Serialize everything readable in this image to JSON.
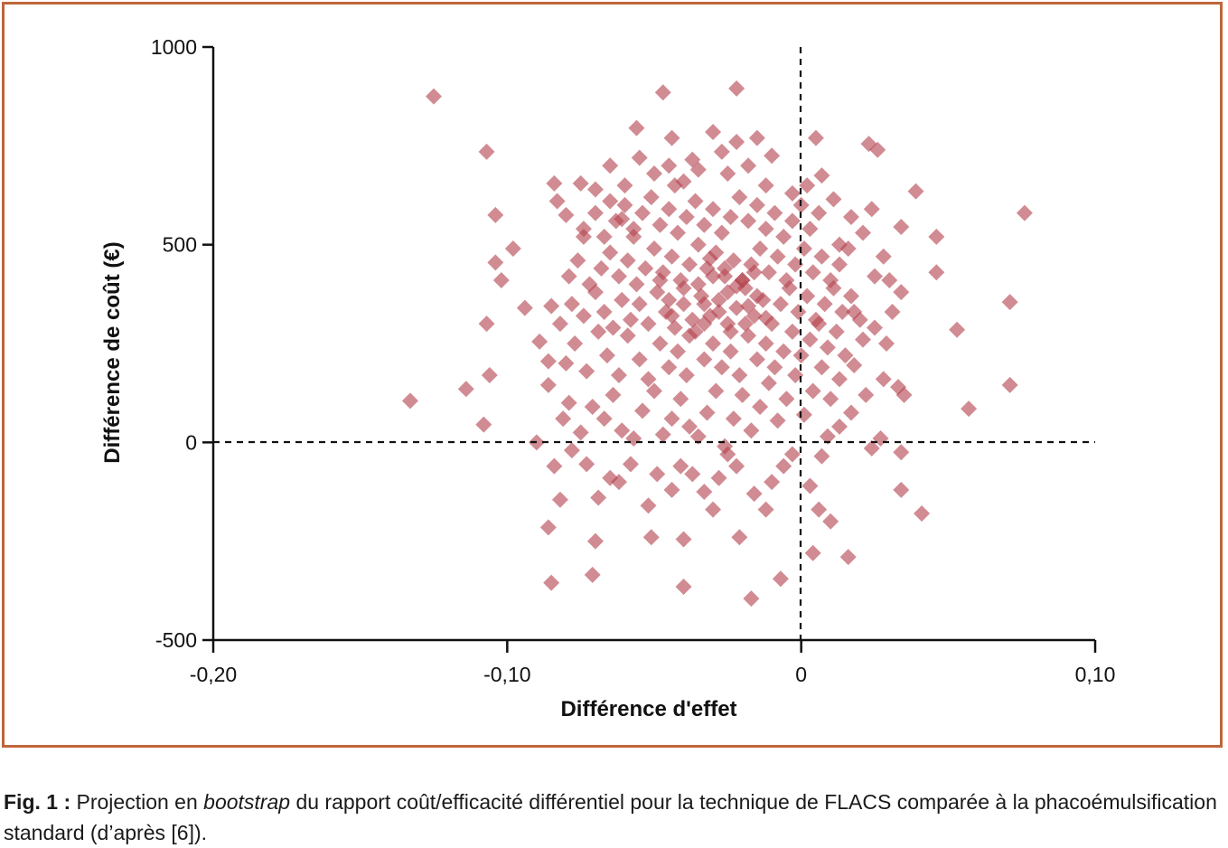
{
  "caption": {
    "fig_label": "Fig. 1 :",
    "text_before": " Projection en ",
    "emphasis": "bootstrap",
    "text_after": " du rapport coût/efficacité différentiel pour la technique de FLACS comparée à la phacoémulsification standard (d’après [6])."
  },
  "colors": {
    "frame": "#c0653a",
    "points": "#b5434f",
    "axes": "#111111"
  },
  "chart_data": {
    "type": "scatter",
    "marker": "diamond",
    "xlabel": "Différence d'effet",
    "ylabel": "Différence de coût (€)",
    "xlim": [
      -0.2,
      0.1
    ],
    "ylim": [
      -500,
      1000
    ],
    "x_ticks": [
      -0.2,
      -0.1,
      0,
      0.1
    ],
    "x_tick_labels": [
      "-0,20",
      "-0,10",
      "0",
      "0,10"
    ],
    "y_ticks": [
      1000,
      500,
      0,
      -500
    ],
    "y_tick_labels": [
      "1000",
      "500",
      "0",
      "-500"
    ],
    "reference_lines": {
      "x": 0,
      "y": 0,
      "style": "dashed"
    },
    "points": [
      [
        -0.125,
        875
      ],
      [
        -0.047,
        885
      ],
      [
        -0.022,
        895
      ],
      [
        -0.107,
        735
      ],
      [
        -0.104,
        575
      ],
      [
        -0.133,
        105
      ],
      [
        -0.114,
        135
      ],
      [
        -0.108,
        45
      ],
      [
        -0.106,
        170
      ],
      [
        -0.107,
        300
      ],
      [
        -0.104,
        455
      ],
      [
        -0.102,
        410
      ],
      [
        -0.098,
        490
      ],
      [
        -0.094,
        340
      ],
      [
        -0.089,
        255
      ],
      [
        -0.086,
        205
      ],
      [
        -0.085,
        345
      ],
      [
        -0.086,
        145
      ],
      [
        -0.09,
        0
      ],
      [
        -0.084,
        -60
      ],
      [
        -0.082,
        -145
      ],
      [
        -0.086,
        -215
      ],
      [
        -0.085,
        -355
      ],
      [
        -0.071,
        -335
      ],
      [
        -0.07,
        -250
      ],
      [
        -0.04,
        -365
      ],
      [
        -0.017,
        -395
      ],
      [
        -0.007,
        -345
      ],
      [
        0.004,
        -280
      ],
      [
        0.016,
        -290
      ],
      [
        -0.021,
        -240
      ],
      [
        -0.04,
        -245
      ],
      [
        -0.051,
        -240
      ],
      [
        0.034,
        -120
      ],
      [
        0.041,
        -180
      ],
      [
        0.057,
        85
      ],
      [
        0.071,
        145
      ],
      [
        0.071,
        355
      ],
      [
        0.053,
        285
      ],
      [
        0.076,
        580
      ],
      [
        0.046,
        520
      ],
      [
        0.046,
        430
      ],
      [
        0.039,
        635
      ],
      [
        0.034,
        545
      ],
      [
        0.026,
        740
      ],
      [
        0.023,
        755
      ],
      [
        0.005,
        770
      ],
      [
        -0.056,
        795
      ],
      [
        -0.044,
        770
      ],
      [
        -0.022,
        760
      ],
      [
        -0.084,
        655
      ],
      [
        -0.075,
        655
      ],
      [
        -0.083,
        610
      ],
      [
        -0.07,
        640
      ],
      [
        -0.08,
        575
      ],
      [
        -0.074,
        520
      ],
      [
        -0.065,
        610
      ],
      [
        -0.061,
        565
      ],
      [
        -0.057,
        520
      ],
      [
        -0.05,
        680
      ],
      [
        -0.043,
        650
      ],
      [
        -0.037,
        715
      ],
      [
        -0.03,
        785
      ],
      [
        -0.027,
        735
      ],
      [
        -0.015,
        770
      ],
      [
        -0.01,
        725
      ],
      [
        0.002,
        650
      ],
      [
        0.007,
        675
      ],
      [
        0.011,
        615
      ],
      [
        0.017,
        570
      ],
      [
        0.024,
        590
      ],
      [
        0.013,
        500
      ],
      [
        0.021,
        530
      ],
      [
        0.028,
        470
      ],
      [
        0.025,
        420
      ],
      [
        0.03,
        410
      ],
      [
        0.034,
        380
      ],
      [
        0.031,
        330
      ],
      [
        0.029,
        250
      ],
      [
        0.025,
        290
      ],
      [
        0.018,
        195
      ],
      [
        0.022,
        120
      ],
      [
        0.028,
        160
      ],
      [
        0.033,
        140
      ],
      [
        0.035,
        120
      ],
      [
        0.027,
        10
      ],
      [
        0.024,
        -15
      ],
      [
        0.034,
        -25
      ],
      [
        0.017,
        75
      ],
      [
        0.013,
        40
      ],
      [
        0.009,
        15
      ],
      [
        0.007,
        -35
      ],
      [
        0.003,
        -110
      ],
      [
        0.006,
        -170
      ],
      [
        0.01,
        -200
      ],
      [
        -0.003,
        -30
      ],
      [
        -0.006,
        -60
      ],
      [
        -0.01,
        -100
      ],
      [
        -0.012,
        -170
      ],
      [
        -0.016,
        -130
      ],
      [
        -0.022,
        -60
      ],
      [
        -0.025,
        -30
      ],
      [
        -0.028,
        -90
      ],
      [
        -0.03,
        -170
      ],
      [
        -0.033,
        -125
      ],
      [
        -0.037,
        -80
      ],
      [
        -0.041,
        -60
      ],
      [
        -0.044,
        -120
      ],
      [
        -0.049,
        -80
      ],
      [
        -0.052,
        -160
      ],
      [
        -0.058,
        -55
      ],
      [
        -0.062,
        -100
      ],
      [
        -0.065,
        -90
      ],
      [
        -0.069,
        -140
      ],
      [
        -0.073,
        -55
      ],
      [
        -0.078,
        -20
      ],
      [
        -0.081,
        60
      ],
      [
        -0.079,
        100
      ],
      [
        -0.075,
        25
      ],
      [
        -0.071,
        90
      ],
      [
        -0.067,
        60
      ],
      [
        -0.064,
        120
      ],
      [
        -0.061,
        30
      ],
      [
        -0.057,
        10
      ],
      [
        -0.054,
        80
      ],
      [
        -0.05,
        130
      ],
      [
        -0.047,
        20
      ],
      [
        -0.044,
        60
      ],
      [
        -0.041,
        110
      ],
      [
        -0.038,
        40
      ],
      [
        -0.035,
        15
      ],
      [
        -0.032,
        75
      ],
      [
        -0.029,
        130
      ],
      [
        -0.026,
        -10
      ],
      [
        -0.023,
        60
      ],
      [
        -0.02,
        120
      ],
      [
        -0.017,
        30
      ],
      [
        -0.014,
        90
      ],
      [
        -0.011,
        150
      ],
      [
        -0.008,
        55
      ],
      [
        -0.005,
        110
      ],
      [
        -0.002,
        170
      ],
      [
        0.001,
        70
      ],
      [
        0.004,
        130
      ],
      [
        0.007,
        190
      ],
      [
        0.01,
        110
      ],
      [
        0.013,
        160
      ],
      [
        -0.08,
        200
      ],
      [
        -0.077,
        250
      ],
      [
        -0.073,
        180
      ],
      [
        -0.069,
        280
      ],
      [
        -0.066,
        220
      ],
      [
        -0.062,
        170
      ],
      [
        -0.059,
        270
      ],
      [
        -0.055,
        210
      ],
      [
        -0.052,
        160
      ],
      [
        -0.048,
        250
      ],
      [
        -0.045,
        190
      ],
      [
        -0.042,
        230
      ],
      [
        -0.039,
        170
      ],
      [
        -0.036,
        280
      ],
      [
        -0.033,
        210
      ],
      [
        -0.03,
        250
      ],
      [
        -0.027,
        190
      ],
      [
        -0.024,
        230
      ],
      [
        -0.021,
        170
      ],
      [
        -0.018,
        270
      ],
      [
        -0.015,
        210
      ],
      [
        -0.012,
        250
      ],
      [
        -0.009,
        190
      ],
      [
        -0.006,
        230
      ],
      [
        -0.003,
        280
      ],
      [
        0.0,
        220
      ],
      [
        0.003,
        260
      ],
      [
        0.006,
        300
      ],
      [
        0.009,
        240
      ],
      [
        0.012,
        280
      ],
      [
        0.015,
        220
      ],
      [
        0.018,
        330
      ],
      [
        0.021,
        260
      ],
      [
        -0.082,
        300
      ],
      [
        -0.078,
        350
      ],
      [
        -0.074,
        320
      ],
      [
        -0.07,
        380
      ],
      [
        -0.067,
        330
      ],
      [
        -0.064,
        290
      ],
      [
        -0.061,
        360
      ],
      [
        -0.058,
        310
      ],
      [
        -0.055,
        350
      ],
      [
        -0.052,
        300
      ],
      [
        -0.049,
        380
      ],
      [
        -0.046,
        330
      ],
      [
        -0.043,
        290
      ],
      [
        -0.04,
        350
      ],
      [
        -0.037,
        310
      ],
      [
        -0.034,
        370
      ],
      [
        -0.031,
        320
      ],
      [
        -0.028,
        360
      ],
      [
        -0.025,
        300
      ],
      [
        -0.022,
        340
      ],
      [
        -0.019,
        390
      ],
      [
        -0.016,
        320
      ],
      [
        -0.013,
        360
      ],
      [
        -0.01,
        300
      ],
      [
        -0.007,
        350
      ],
      [
        -0.004,
        390
      ],
      [
        -0.001,
        330
      ],
      [
        0.002,
        370
      ],
      [
        0.005,
        310
      ],
      [
        0.008,
        350
      ],
      [
        0.011,
        390
      ],
      [
        0.014,
        330
      ],
      [
        0.017,
        370
      ],
      [
        0.02,
        310
      ],
      [
        -0.079,
        420
      ],
      [
        -0.076,
        460
      ],
      [
        -0.072,
        400
      ],
      [
        -0.068,
        440
      ],
      [
        -0.065,
        480
      ],
      [
        -0.062,
        420
      ],
      [
        -0.059,
        460
      ],
      [
        -0.056,
        400
      ],
      [
        -0.053,
        440
      ],
      [
        -0.05,
        490
      ],
      [
        -0.047,
        430
      ],
      [
        -0.044,
        470
      ],
      [
        -0.041,
        410
      ],
      [
        -0.038,
        450
      ],
      [
        -0.035,
        500
      ],
      [
        -0.032,
        440
      ],
      [
        -0.029,
        480
      ],
      [
        -0.026,
        420
      ],
      [
        -0.023,
        460
      ],
      [
        -0.02,
        410
      ],
      [
        -0.017,
        450
      ],
      [
        -0.014,
        490
      ],
      [
        -0.011,
        430
      ],
      [
        -0.008,
        470
      ],
      [
        -0.005,
        410
      ],
      [
        -0.002,
        450
      ],
      [
        0.001,
        490
      ],
      [
        0.004,
        430
      ],
      [
        0.007,
        470
      ],
      [
        0.01,
        410
      ],
      [
        0.013,
        450
      ],
      [
        0.016,
        490
      ],
      [
        -0.074,
        540
      ],
      [
        -0.07,
        580
      ],
      [
        -0.067,
        520
      ],
      [
        -0.063,
        560
      ],
      [
        -0.06,
        600
      ],
      [
        -0.057,
        540
      ],
      [
        -0.054,
        580
      ],
      [
        -0.051,
        620
      ],
      [
        -0.048,
        550
      ],
      [
        -0.045,
        590
      ],
      [
        -0.042,
        530
      ],
      [
        -0.039,
        570
      ],
      [
        -0.036,
        610
      ],
      [
        -0.033,
        550
      ],
      [
        -0.03,
        590
      ],
      [
        -0.027,
        530
      ],
      [
        -0.024,
        570
      ],
      [
        -0.021,
        620
      ],
      [
        -0.018,
        560
      ],
      [
        -0.015,
        600
      ],
      [
        -0.012,
        540
      ],
      [
        -0.009,
        580
      ],
      [
        -0.006,
        520
      ],
      [
        -0.003,
        560
      ],
      [
        0.0,
        600
      ],
      [
        0.003,
        540
      ],
      [
        0.006,
        580
      ],
      [
        -0.045,
        700
      ],
      [
        -0.04,
        660
      ],
      [
        -0.035,
        690
      ],
      [
        -0.025,
        680
      ],
      [
        -0.018,
        700
      ],
      [
        -0.012,
        650
      ],
      [
        -0.003,
        630
      ],
      [
        -0.06,
        650
      ],
      [
        -0.065,
        700
      ],
      [
        -0.055,
        720
      ],
      [
        -0.035,
        400
      ],
      [
        -0.03,
        420
      ],
      [
        -0.025,
        380
      ],
      [
        -0.02,
        410
      ],
      [
        -0.015,
        370
      ],
      [
        -0.045,
        360
      ],
      [
        -0.04,
        390
      ],
      [
        -0.033,
        350
      ],
      [
        -0.028,
        330
      ],
      [
        -0.018,
        345
      ],
      [
        -0.012,
        315
      ],
      [
        -0.038,
        270
      ],
      [
        -0.033,
        300
      ],
      [
        -0.024,
        280
      ],
      [
        -0.019,
        300
      ],
      [
        -0.044,
        320
      ],
      [
        -0.048,
        410
      ],
      [
        -0.026,
        440
      ],
      [
        -0.016,
        430
      ],
      [
        -0.031,
        465
      ],
      [
        -0.022,
        395
      ]
    ]
  }
}
